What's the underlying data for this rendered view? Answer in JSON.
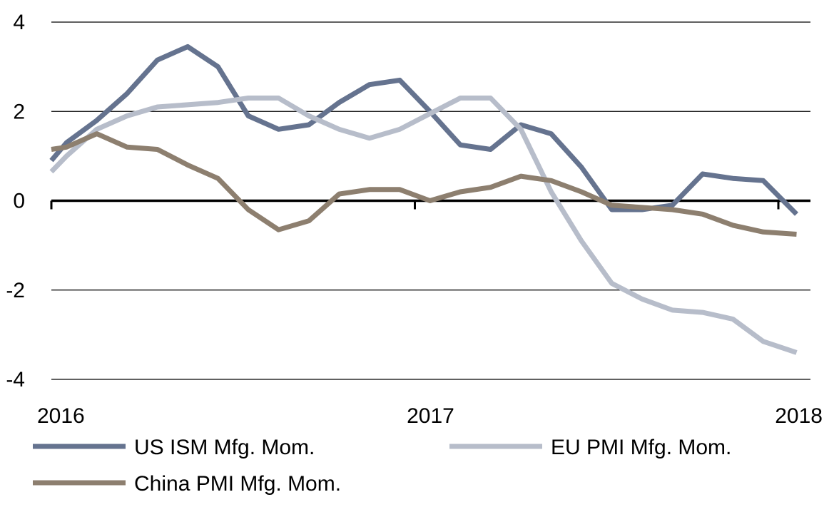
{
  "chart_data": {
    "type": "line",
    "title": "",
    "xlabel": "",
    "ylabel": "",
    "ylim": [
      -4,
      4
    ],
    "xlim": [
      2016.0,
      2018.05
    ],
    "yticks": [
      4,
      2,
      0,
      -2,
      -4
    ],
    "ytick_labels": [
      "4",
      "2",
      "0",
      "-2",
      "-4"
    ],
    "xticks": [
      2016,
      2017,
      2018
    ],
    "xtick_labels": [
      "2016",
      "2017",
      "2018"
    ],
    "grid": "horizontal",
    "legend_position": "bottom",
    "x": [
      2016.0,
      2016.0417,
      2016.125,
      2016.2083,
      2016.2917,
      2016.375,
      2016.4583,
      2016.5417,
      2016.625,
      2016.7083,
      2016.7917,
      2016.875,
      2016.9583,
      2017.0417,
      2017.125,
      2017.2083,
      2017.2917,
      2017.375,
      2017.4583,
      2017.5417,
      2017.625,
      2017.7083,
      2017.7917,
      2017.875,
      2017.9583,
      2018.05
    ],
    "series": [
      {
        "name": "US ISM Mfg. Mom.",
        "color": "#65738f",
        "values": [
          0.9,
          1.3,
          1.8,
          2.4,
          3.15,
          3.45,
          3.0,
          1.9,
          1.6,
          1.7,
          2.2,
          2.6,
          2.7,
          2.0,
          1.25,
          1.15,
          1.7,
          1.5,
          0.75,
          -0.2,
          -0.2,
          -0.1,
          0.6,
          0.5,
          0.45,
          -0.3
        ]
      },
      {
        "name": "EU PMI Mfg. Mom.",
        "color": "#b7bdca",
        "values": [
          0.65,
          1.0,
          1.6,
          1.9,
          2.1,
          2.15,
          2.2,
          2.3,
          2.3,
          1.9,
          1.6,
          1.4,
          1.6,
          1.95,
          2.3,
          2.3,
          1.6,
          0.2,
          -0.9,
          -1.85,
          -2.2,
          -2.45,
          -2.5,
          -2.65,
          -3.15,
          -3.4
        ]
      },
      {
        "name": "China PMI Mfg. Mom.",
        "color": "#8d7f6f",
        "values": [
          1.15,
          1.2,
          1.5,
          1.2,
          1.15,
          0.8,
          0.5,
          -0.2,
          -0.65,
          -0.45,
          0.15,
          0.25,
          0.25,
          0.0,
          0.2,
          0.3,
          0.55,
          0.45,
          0.2,
          -0.1,
          -0.15,
          -0.2,
          -0.3,
          -0.55,
          -0.7,
          -0.75
        ]
      }
    ]
  }
}
